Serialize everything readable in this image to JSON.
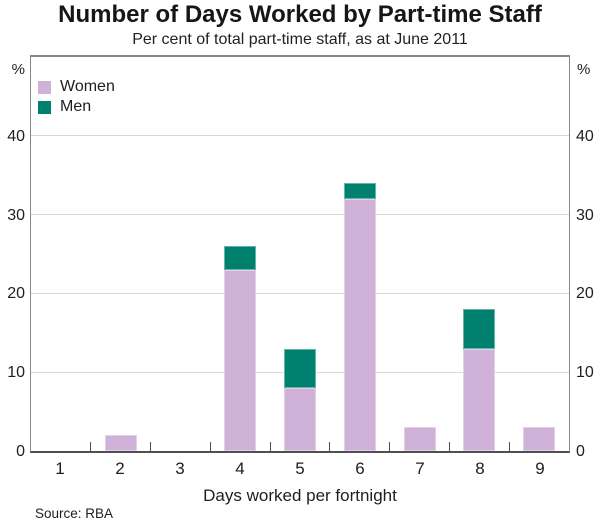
{
  "title": "Number of Days Worked by Part-time Staff",
  "subtitle": "Per cent of total part-time staff, as at June 2011",
  "source_note": "Source: RBA",
  "axes": {
    "y_unit_left": "%",
    "y_unit_right": "%",
    "x_label": "Days worked per fortnight"
  },
  "colors": {
    "women": "#d0b2d8",
    "men": "#00816f",
    "gridline": "#d9d9d9",
    "box_border": "#85878a",
    "axis_line": "#4e5052",
    "text": "#1e1e1e"
  },
  "chart_data": {
    "type": "bar",
    "stacked": true,
    "title": "Number of Days Worked by Part-time Staff",
    "subtitle": "Per cent of total part-time staff, as at June 2011",
    "xlabel": "Days worked per fortnight",
    "ylabel": "%",
    "categories": [
      "1",
      "2",
      "3",
      "4",
      "5",
      "6",
      "7",
      "8",
      "9"
    ],
    "series": [
      {
        "name": "Women",
        "color": "#d0b2d8",
        "values": [
          0,
          2,
          0,
          23,
          8,
          32,
          3,
          13,
          3
        ]
      },
      {
        "name": "Men",
        "color": "#00816f",
        "values": [
          0,
          0,
          0,
          3,
          5,
          2,
          0,
          5,
          0
        ]
      }
    ],
    "yticks": [
      0,
      10,
      20,
      30,
      40
    ],
    "ylim": [
      0,
      50
    ],
    "grid": true,
    "legend_position": "top-left",
    "source": "RBA"
  }
}
